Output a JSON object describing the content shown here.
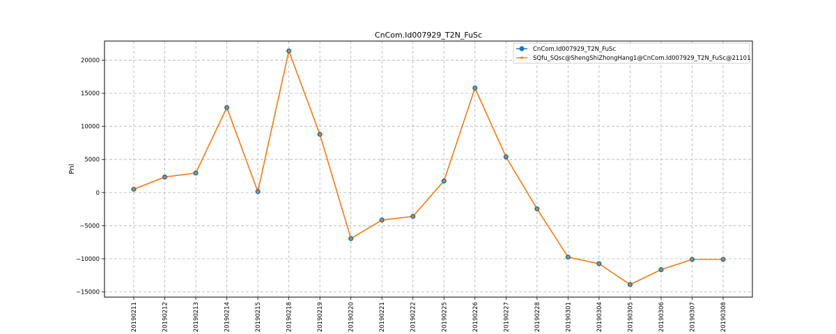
{
  "chart_data": {
    "type": "line",
    "title": "CnCom.Id007929_T2N_FuSc",
    "xlabel": "",
    "ylabel": "Pnl",
    "categories": [
      "20190211",
      "20190212",
      "20190213",
      "20190214",
      "20190215",
      "20190218",
      "20190219",
      "20190220",
      "20190221",
      "20190222",
      "20190225",
      "20190226",
      "20190227",
      "20190228",
      "20190301",
      "20190304",
      "20190305",
      "20190306",
      "20190307",
      "20190308"
    ],
    "series": [
      {
        "name": "CnCom.Id007929_T2N_FuSc",
        "color": "#1f77b4",
        "marker": "circle-large",
        "values": [
          500,
          2350,
          2950,
          12850,
          150,
          21400,
          8800,
          -6950,
          -4150,
          -3600,
          1750,
          15800,
          5400,
          -2450,
          -9750,
          -10750,
          -13900,
          -11650,
          -10100,
          -10100
        ]
      },
      {
        "name": "SQfu_SQsc@ShengShiZhongHang1@CnCom.Id007929_T2N_FuSc@21101",
        "color": "#ff7f0e",
        "marker": "circle-small",
        "values": [
          500,
          2350,
          2950,
          12850,
          150,
          21400,
          8800,
          -6950,
          -4150,
          -3600,
          1750,
          15800,
          5400,
          -2450,
          -9750,
          -10750,
          -13900,
          -11650,
          -10100,
          -10100
        ]
      }
    ],
    "yticks": [
      -15000,
      -10000,
      -5000,
      0,
      5000,
      10000,
      15000,
      20000
    ],
    "ylim": [
      -15800,
      22900
    ],
    "grid": true,
    "legend_position": "top-right"
  }
}
